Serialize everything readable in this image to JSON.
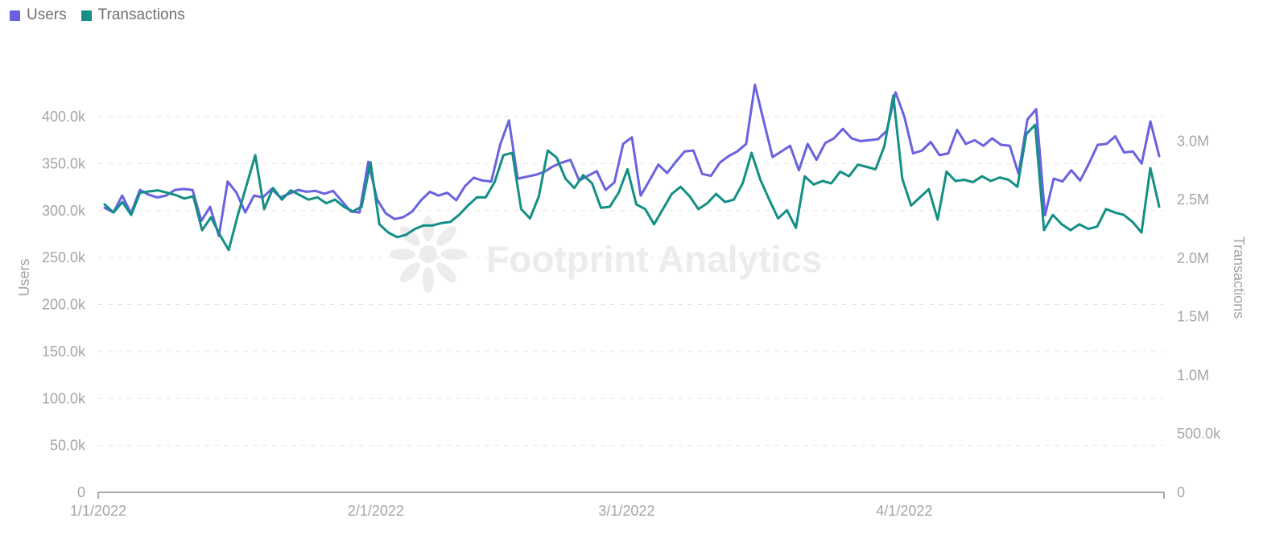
{
  "chart_data": {
    "type": "line",
    "legend_position": "top-left",
    "watermark": "Footprint Analytics",
    "x_tick_labels": [
      "1/1/2022",
      "2/1/2022",
      "3/1/2022",
      "4/1/2022"
    ],
    "x_range": [
      "2022-01-01",
      "2022-04-30"
    ],
    "y_left": {
      "label": "Users",
      "range": [
        0,
        430000
      ],
      "tick_values": [
        0,
        50000,
        100000,
        150000,
        200000,
        250000,
        300000,
        350000,
        400000
      ],
      "tick_labels": [
        "0",
        "50.0k",
        "100.0k",
        "150.0k",
        "200.0k",
        "250.0k",
        "300.0k",
        "350.0k",
        "400.0k"
      ]
    },
    "y_right": {
      "label": "Transactions",
      "range": [
        0,
        3450000
      ],
      "tick_values": [
        0,
        500000,
        1000000,
        1500000,
        2000000,
        2500000,
        3000000
      ],
      "tick_labels": [
        "0",
        "500.0k",
        "1.0M",
        "1.5M",
        "2.0M",
        "2.5M",
        "3.0M"
      ]
    },
    "grid": true,
    "series": [
      {
        "name": "Users",
        "axis": "left",
        "color": "#6a62e0",
        "values": [
          303000,
          298000,
          316000,
          297000,
          322000,
          317000,
          314000,
          316000,
          322000,
          323000,
          322000,
          289000,
          304000,
          273000,
          331000,
          319000,
          298000,
          316000,
          314000,
          323000,
          314000,
          318000,
          322000,
          320000,
          321000,
          318000,
          321000,
          310000,
          299000,
          298000,
          352000,
          312000,
          297000,
          291000,
          293000,
          299000,
          311000,
          320000,
          316000,
          319000,
          311000,
          326000,
          335000,
          332000,
          331000,
          370000,
          396000,
          334000,
          336000,
          338000,
          341000,
          347000,
          351000,
          354000,
          332000,
          337000,
          342000,
          322000,
          330000,
          371000,
          378000,
          316000,
          332000,
          349000,
          340000,
          352000,
          363000,
          364000,
          339000,
          337000,
          351000,
          358000,
          363000,
          371000,
          434000,
          395000,
          357000,
          363000,
          369000,
          343000,
          371000,
          354000,
          372000,
          377000,
          387000,
          377000,
          374000,
          375000,
          376000,
          385000,
          426000,
          400000,
          361000,
          364000,
          373000,
          359000,
          361000,
          386000,
          371000,
          375000,
          369000,
          377000,
          370000,
          369000,
          339000,
          397000,
          408000,
          295000,
          334000,
          331000,
          343000,
          332000,
          350000,
          370000,
          371000,
          379000,
          362000,
          363000,
          350000,
          395000,
          358000
        ]
      },
      {
        "name": "Transactions",
        "axis": "right",
        "color": "#138f85",
        "values": [
          2460000,
          2390000,
          2480000,
          2370000,
          2560000,
          2570000,
          2580000,
          2560000,
          2540000,
          2510000,
          2530000,
          2240000,
          2350000,
          2200000,
          2070000,
          2360000,
          2620000,
          2880000,
          2420000,
          2600000,
          2500000,
          2580000,
          2540000,
          2500000,
          2520000,
          2470000,
          2500000,
          2440000,
          2400000,
          2440000,
          2820000,
          2290000,
          2220000,
          2180000,
          2200000,
          2250000,
          2280000,
          2280000,
          2300000,
          2310000,
          2370000,
          2450000,
          2520000,
          2520000,
          2650000,
          2880000,
          2900000,
          2420000,
          2340000,
          2530000,
          2920000,
          2860000,
          2680000,
          2600000,
          2710000,
          2640000,
          2430000,
          2440000,
          2560000,
          2760000,
          2460000,
          2420000,
          2290000,
          2420000,
          2550000,
          2610000,
          2530000,
          2420000,
          2470000,
          2550000,
          2480000,
          2500000,
          2640000,
          2900000,
          2670000,
          2500000,
          2340000,
          2410000,
          2260000,
          2700000,
          2630000,
          2660000,
          2640000,
          2740000,
          2700000,
          2800000,
          2780000,
          2760000,
          2960000,
          3390000,
          2680000,
          2450000,
          2520000,
          2590000,
          2330000,
          2740000,
          2660000,
          2670000,
          2650000,
          2700000,
          2660000,
          2690000,
          2670000,
          2610000,
          3060000,
          3140000,
          2240000,
          2370000,
          2290000,
          2240000,
          2290000,
          2250000,
          2270000,
          2420000,
          2390000,
          2370000,
          2310000,
          2220000,
          2770000,
          2440000
        ]
      }
    ]
  }
}
